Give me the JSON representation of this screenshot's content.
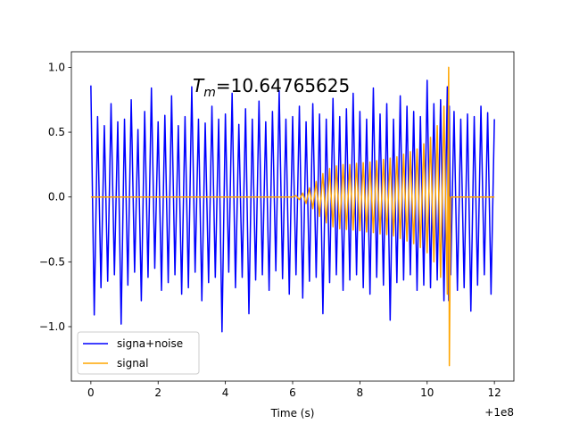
{
  "chart_data": {
    "type": "line",
    "annotation": {
      "symbol": "T",
      "subscript": "m",
      "text": "=10.64765625"
    },
    "xlabel": "Time (s)",
    "x_offset_label": "+1e8",
    "x": [
      0,
      0.1,
      0.2,
      0.3,
      0.4,
      0.5,
      0.6,
      0.7,
      0.8,
      0.9,
      1,
      1.1,
      1.2,
      1.3,
      1.4,
      1.5,
      1.6,
      1.7,
      1.8,
      1.9,
      2,
      2.1,
      2.2,
      2.3,
      2.4,
      2.5,
      2.6,
      2.7,
      2.8,
      2.9,
      3,
      3.1,
      3.2,
      3.3,
      3.4,
      3.5,
      3.6,
      3.7,
      3.8,
      3.9,
      4,
      4.1,
      4.2,
      4.3,
      4.4,
      4.5,
      4.6,
      4.7,
      4.8,
      4.9,
      5,
      5.1,
      5.2,
      5.3,
      5.4,
      5.5,
      5.6,
      5.7,
      5.8,
      5.9,
      6,
      6.1,
      6.2,
      6.3,
      6.4,
      6.5,
      6.6,
      6.7,
      6.8,
      6.9,
      7,
      7.1,
      7.2,
      7.3,
      7.4,
      7.5,
      7.6,
      7.7,
      7.8,
      7.9,
      8,
      8.1,
      8.2,
      8.3,
      8.4,
      8.5,
      8.6,
      8.7,
      8.8,
      8.9,
      9,
      9.1,
      9.2,
      9.3,
      9.4,
      9.5,
      9.6,
      9.7,
      9.8,
      9.9,
      10,
      10.1,
      10.2,
      10.3,
      10.4,
      10.5,
      10.6,
      10.64,
      10.66,
      10.7,
      10.8,
      10.9,
      11,
      11.1,
      11.2,
      11.3,
      11.4,
      11.5,
      11.6,
      11.7,
      11.8,
      11.9,
      12
    ],
    "series": [
      {
        "name": "signa+noise",
        "color": "#0000ff",
        "values": [
          0.86,
          -0.91,
          0.62,
          -0.7,
          0.55,
          -0.65,
          0.72,
          -0.6,
          0.58,
          -0.98,
          0.6,
          -0.68,
          0.75,
          -0.58,
          0.52,
          -0.8,
          0.66,
          -0.62,
          0.84,
          -0.55,
          0.58,
          -0.72,
          0.63,
          -0.66,
          0.78,
          -0.6,
          0.55,
          -0.75,
          0.62,
          -0.7,
          0.85,
          -0.58,
          0.6,
          -0.8,
          0.57,
          -0.66,
          0.7,
          -0.62,
          0.6,
          -1.04,
          0.64,
          -0.58,
          0.8,
          -0.7,
          0.56,
          -0.62,
          0.68,
          -0.9,
          0.6,
          -0.64,
          0.74,
          -0.6,
          0.58,
          -0.72,
          0.66,
          -0.57,
          0.82,
          -0.63,
          0.6,
          -0.75,
          0.62,
          -0.6,
          0.7,
          -0.78,
          0.58,
          -0.65,
          0.72,
          -0.62,
          0.64,
          -0.9,
          0.6,
          -0.66,
          0.76,
          -0.6,
          0.62,
          -0.72,
          0.68,
          -0.64,
          0.8,
          -0.6,
          0.66,
          -0.7,
          0.6,
          -0.75,
          0.84,
          -0.62,
          0.64,
          -0.68,
          0.72,
          -0.95,
          0.6,
          -0.66,
          0.78,
          -0.64,
          0.7,
          -0.6,
          0.66,
          -0.72,
          0.62,
          -0.68,
          0.9,
          -0.7,
          0.72,
          -0.64,
          0.75,
          -0.8,
          0.85,
          -0.8,
          0.7,
          -0.6,
          0.66,
          -0.72,
          0.6,
          -0.7,
          0.64,
          -0.88,
          0.62,
          -0.68,
          0.7,
          -0.6,
          0.65,
          -0.75,
          0.6
        ]
      },
      {
        "name": "signal",
        "color": "#ffa500",
        "values": [
          0,
          0,
          0,
          0,
          0,
          0,
          0,
          0,
          0,
          0,
          0,
          0,
          0,
          0,
          0,
          0,
          0,
          0,
          0,
          0,
          0,
          0,
          0,
          0,
          0,
          0,
          0,
          0,
          0,
          0,
          0,
          0,
          0,
          0,
          0,
          0,
          0,
          0,
          0,
          0,
          0,
          0,
          0,
          0,
          0,
          0,
          0,
          0,
          0,
          0,
          0,
          0,
          0,
          0,
          0,
          0,
          0,
          0,
          0,
          0,
          0,
          0.01,
          -0.02,
          0.03,
          -0.05,
          0.07,
          -0.09,
          0.12,
          -0.15,
          0.18,
          -0.2,
          0.22,
          -0.23,
          0.24,
          -0.245,
          0.25,
          -0.25,
          0.25,
          -0.255,
          0.26,
          -0.26,
          0.265,
          -0.27,
          0.27,
          -0.275,
          0.28,
          -0.285,
          0.29,
          -0.29,
          0.3,
          -0.3,
          0.31,
          -0.32,
          0.33,
          -0.34,
          0.35,
          -0.36,
          0.37,
          -0.39,
          0.41,
          -0.43,
          0.46,
          -0.5,
          0.55,
          -0.62,
          0.7,
          -0.75,
          1.0,
          -1.3,
          0,
          0,
          0,
          0,
          0,
          0,
          0,
          0,
          0,
          0,
          0,
          0,
          0,
          0
        ]
      }
    ],
    "xlim": [
      -0.58,
      12.58
    ],
    "ylim": [
      -1.42,
      1.12
    ],
    "xticks": [
      0,
      2,
      4,
      6,
      8,
      10,
      12
    ],
    "yticks": [
      {
        "value": -1,
        "label": "−1.0"
      },
      {
        "value": -0.5,
        "label": "−0.5"
      },
      {
        "value": 0,
        "label": "0.0"
      },
      {
        "value": 0.5,
        "label": "0.5"
      },
      {
        "value": 1,
        "label": "1.0"
      }
    ],
    "legend": "lower left",
    "grid": false
  }
}
